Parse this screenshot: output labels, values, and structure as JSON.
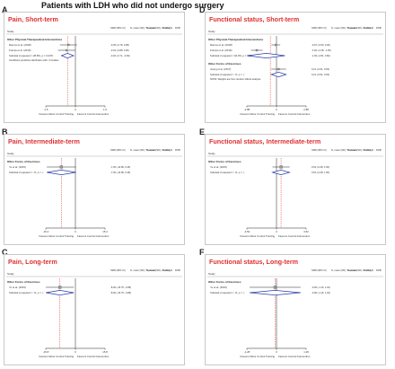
{
  "figure_title": "Patients with LDH who did not undergo surgery",
  "colors": {
    "title_red": "#e03030",
    "diamond": "#2b3da6",
    "ref_red": "#e03030"
  },
  "panels": [
    {
      "letter": "A",
      "title": "Pain, Short-term",
      "study_label": "Study",
      "headers": [
        "SMD (95% CI)",
        "N, mean (SD); Treatment",
        "N, mean (SD); Control",
        "% Weight",
        "ROB"
      ],
      "groups": [
        {
          "label": "Other Physical-Therapeutical Interventions",
          "rows": [
            {
              "label": "Ramos et al. (2018)",
              "est": -0.35,
              "lo": -0.78,
              "hi": 0.08,
              "w": 2
            },
            {
              "label": "França et al. (2019)",
              "est": -0.44,
              "lo": -0.88,
              "hi": 0.0,
              "w": 2
            }
          ],
          "subtotal": {
            "label": "Subtotal (I-squared = 28.8%, p = 0.237)",
            "est": -0.4,
            "lo": -0.71,
            "hi": -0.09
          }
        }
      ],
      "notes": [
        "Insufficient predictive distribution with <3 studies"
      ],
      "axis": {
        "min": -1.5,
        "max": 1.5,
        "ref": -0.4,
        "tick_labels": [
          "-1.5",
          "1.5"
        ],
        "xlabel_left": "Favours Motor Control Training",
        "xlabel_right": "Favours Control Intervention"
      }
    },
    {
      "letter": "D",
      "title": "Functional status, Short-term",
      "study_label": "Study",
      "headers": [
        "SMD (95% CI)",
        "N, mean (SD); Treatment",
        "N, mean (SD); Control",
        "% Weight",
        "ROB"
      ],
      "groups": [
        {
          "label": "Other Physical-Therapeutical Interventions",
          "rows": [
            {
              "label": "Ramos et al. (2018)",
              "est": -0.07,
              "lo": -0.5,
              "hi": 0.36,
              "w": 2
            },
            {
              "label": "França et al. (2019)",
              "est": -1.92,
              "lo": -2.48,
              "hi": -1.35,
              "w": 2
            }
          ],
          "subtotal": {
            "label": "Subtotal (I-squared = 94.0%, p = 0.000)",
            "est": -1.0,
            "lo": -2.81,
            "hi": 0.82
          }
        },
        {
          "label": "Other Forms of Exercises",
          "rows": [
            {
              "label": "Jeong et al. (2017)",
              "est": 0.21,
              "lo": -0.51,
              "hi": 0.93,
              "w": 2
            }
          ],
          "subtotal": {
            "label": "Subtotal (I-squared = .%, p = .)",
            "est": 0.21,
            "lo": -0.51,
            "hi": 0.93
          }
        }
      ],
      "notes": [
        "NOTE: Weights are from random effects analysis"
      ],
      "axis": {
        "min": -2.88,
        "max": 2.88,
        "ref": -0.6,
        "tick_labels": [
          "-2.88",
          "2.88"
        ],
        "xlabel_left": "Favours Motor Control Training",
        "xlabel_right": "Favours Control Intervention"
      }
    },
    {
      "letter": "B",
      "title": "Pain, Intermediate-term",
      "study_label": "Study",
      "headers": [
        "SMD (95% CI)",
        "N, mean (SD); Treatment",
        "N, mean (SD); Control",
        "% Weight",
        "ROB"
      ],
      "groups": [
        {
          "label": "Other Forms of Exercises",
          "rows": [
            {
              "label": "Ye et al. (2015)",
              "est": -7.3,
              "lo": -14.86,
              "hi": 0.26,
              "w": 3
            }
          ],
          "subtotal": {
            "label": "Subtotal (I-squared = .%, p = .)",
            "est": -7.3,
            "lo": -14.86,
            "hi": 0.26
          }
        }
      ],
      "notes": [],
      "axis": {
        "min": -15.4,
        "max": 15.4,
        "ref": -7.3,
        "tick_labels": [
          "-15.4",
          "15.4"
        ],
        "xlabel_left": "Favours Motor Control Training",
        "xlabel_right": "Favours Control Intervention"
      }
    },
    {
      "letter": "E",
      "title": "Functional status, Intermediate-term",
      "study_label": "Study",
      "headers": [
        "SMD (95% CI)",
        "N, mean (SD); Treatment",
        "N, mean (SD); Control",
        "% Weight",
        "ROB"
      ],
      "groups": [
        {
          "label": "Other Forms of Exercises",
          "rows": [
            {
              "label": "Ye et al. (2015)",
              "est": 0.54,
              "lo": -0.48,
              "hi": 1.56,
              "w": 3
            }
          ],
          "subtotal": {
            "label": "Subtotal (I-squared = .%, p = .)",
            "est": 0.54,
            "lo": -0.48,
            "hi": 1.56
          }
        }
      ],
      "notes": [],
      "axis": {
        "min": -3.52,
        "max": 3.52,
        "ref": 0.54,
        "tick_labels": [
          "-3.52",
          "3.52"
        ],
        "xlabel_left": "Favours Motor Control Training",
        "xlabel_right": "Favours Control Intervention"
      }
    },
    {
      "letter": "C",
      "title": "Pain, Long-term",
      "study_label": "Study",
      "headers": [
        "SMD (95% CI)",
        "N, mean (SD); Treatment",
        "N, mean (SD); Control",
        "% Weight",
        "ROB"
      ],
      "groups": [
        {
          "label": "Other Forms of Exercises",
          "rows": [
            {
              "label": "Ye et al. (2015)",
              "est": -8.3,
              "lo": -15.75,
              "hi": -0.85,
              "w": 3
            }
          ],
          "subtotal": {
            "label": "Subtotal (I-squared = .%, p = .)",
            "est": -8.3,
            "lo": -15.75,
            "hi": -0.85
          }
        }
      ],
      "notes": [],
      "axis": {
        "min": -15.8,
        "max": 15.8,
        "ref": -8.3,
        "tick_labels": [
          "-15.8",
          "15.8"
        ],
        "xlabel_left": "Favours Motor Control Training",
        "xlabel_right": "Favours Control Intervention"
      }
    },
    {
      "letter": "F",
      "title": "Functional status, Long-term",
      "study_label": "Study",
      "headers": [
        "SMD (95% CI)",
        "N, mean (SD); Treatment",
        "N, mean (SD); Control",
        "% Weight",
        "ROB"
      ],
      "groups": [
        {
          "label": "Other Forms of Exercises",
          "rows": [
            {
              "label": "Ye et al. (2015)",
              "est": -0.06,
              "lo": -1.16,
              "hi": 1.04,
              "w": 3
            }
          ],
          "subtotal": {
            "label": "Subtotal (I-squared = .%, p = .)",
            "est": -0.06,
            "lo": -1.16,
            "hi": 1.04
          }
        }
      ],
      "notes": [],
      "axis": {
        "min": -1.28,
        "max": 1.28,
        "ref": -0.06,
        "tick_labels": [
          "-1.28",
          "1.28"
        ],
        "xlabel_left": "Favours Motor Control Training",
        "xlabel_right": "Favours Control Intervention"
      }
    }
  ],
  "chart_data": [
    {
      "type": "forest",
      "title": "Pain, Short-term",
      "xlim": [
        -1.5,
        1.5
      ],
      "series": [
        {
          "values": [
            {
              "study": "Ramos et al. (2018)",
              "est": -0.35,
              "ci": [
                -0.78,
                0.08
              ]
            },
            {
              "study": "França et al. (2019)",
              "est": -0.44,
              "ci": [
                -0.88,
                0.0
              ]
            },
            {
              "study": "Subtotal",
              "est": -0.4,
              "ci": [
                -0.71,
                -0.09
              ]
            }
          ]
        }
      ]
    },
    {
      "type": "forest",
      "title": "Functional status, Short-term",
      "xlim": [
        -2.88,
        2.88
      ],
      "series": [
        {
          "values": [
            {
              "study": "Ramos et al. (2018)",
              "est": -0.07,
              "ci": [
                -0.5,
                0.36
              ]
            },
            {
              "study": "França et al. (2019)",
              "est": -1.92,
              "ci": [
                -2.48,
                -1.35
              ]
            },
            {
              "study": "Subtotal",
              "est": -1.0,
              "ci": [
                -2.81,
                0.82
              ]
            },
            {
              "study": "Jeong et al. (2017)",
              "est": 0.21,
              "ci": [
                -0.51,
                0.93
              ]
            }
          ]
        }
      ]
    },
    {
      "type": "forest",
      "title": "Pain, Intermediate-term",
      "xlim": [
        -15.4,
        15.4
      ],
      "series": [
        {
          "values": [
            {
              "study": "Ye et al. (2015)",
              "est": -7.3,
              "ci": [
                -14.86,
                0.26
              ]
            }
          ]
        }
      ]
    },
    {
      "type": "forest",
      "title": "Functional status, Intermediate-term",
      "xlim": [
        -3.52,
        3.52
      ],
      "series": [
        {
          "values": [
            {
              "study": "Ye et al. (2015)",
              "est": 0.54,
              "ci": [
                -0.48,
                1.56
              ]
            }
          ]
        }
      ]
    },
    {
      "type": "forest",
      "title": "Pain, Long-term",
      "xlim": [
        -15.8,
        15.8
      ],
      "series": [
        {
          "values": [
            {
              "study": "Ye et al. (2015)",
              "est": -8.3,
              "ci": [
                -15.75,
                -0.85
              ]
            }
          ]
        }
      ]
    },
    {
      "type": "forest",
      "title": "Functional status, Long-term",
      "xlim": [
        -1.28,
        1.28
      ],
      "series": [
        {
          "values": [
            {
              "study": "Ye et al. (2015)",
              "est": -0.06,
              "ci": [
                -1.16,
                1.04
              ]
            }
          ]
        }
      ]
    }
  ]
}
